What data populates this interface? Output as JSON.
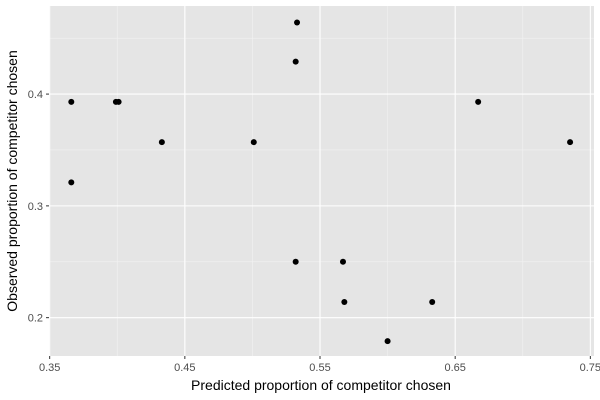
{
  "chart_data": {
    "type": "scatter",
    "title": "",
    "xlabel": "Predicted proportion of competitor chosen",
    "ylabel": "Observed proportion of competitor chosen",
    "xlim": [
      0.3495,
      0.7527
    ],
    "ylim": [
      0.1657,
      0.4788
    ],
    "xticks": [
      0.35,
      0.45,
      0.55,
      0.65,
      0.75
    ],
    "xtick_labels": [
      "0.35",
      "0.45",
      "0.55",
      "0.65",
      "0.75"
    ],
    "yticks": [
      0.2,
      0.3,
      0.4
    ],
    "ytick_labels": [
      "0.2",
      "0.3",
      "0.4"
    ],
    "grid": true,
    "points": [
      {
        "x": 0.366,
        "y": 0.393
      },
      {
        "x": 0.366,
        "y": 0.321
      },
      {
        "x": 0.399,
        "y": 0.393
      },
      {
        "x": 0.401,
        "y": 0.393
      },
      {
        "x": 0.433,
        "y": 0.357
      },
      {
        "x": 0.501,
        "y": 0.357
      },
      {
        "x": 0.533,
        "y": 0.464
      },
      {
        "x": 0.532,
        "y": 0.429
      },
      {
        "x": 0.532,
        "y": 0.25
      },
      {
        "x": 0.567,
        "y": 0.25
      },
      {
        "x": 0.568,
        "y": 0.214
      },
      {
        "x": 0.6,
        "y": 0.179
      },
      {
        "x": 0.633,
        "y": 0.214
      },
      {
        "x": 0.667,
        "y": 0.393
      },
      {
        "x": 0.735,
        "y": 0.357
      }
    ],
    "colors": {
      "panel_background": "#e5e5e5",
      "major_grid": "#ffffff",
      "minor_grid": "#f2f2f2",
      "point": "#000000",
      "tick_text": "#4d4d4d",
      "axis_title": "#000000"
    }
  }
}
